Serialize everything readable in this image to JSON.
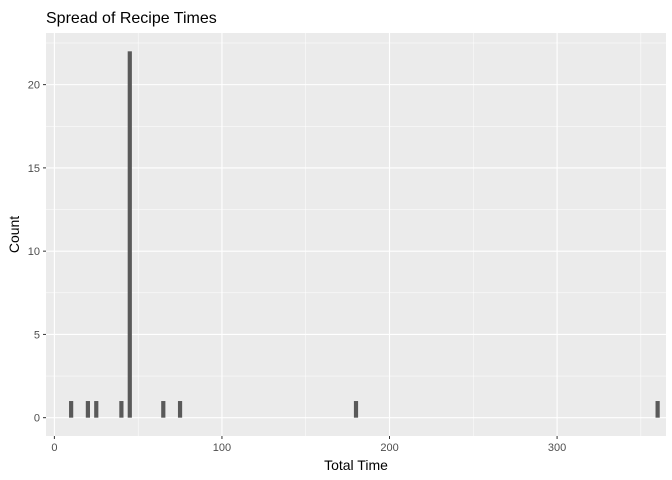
{
  "chart_data": {
    "type": "bar",
    "title": "Spread of Recipe Times",
    "xlabel": "Total Time",
    "ylabel": "Count",
    "xlim": [
      -5,
      365
    ],
    "ylim": [
      -1.1,
      23.1
    ],
    "x_ticks": [
      0,
      100,
      200,
      300
    ],
    "y_ticks": [
      0,
      5,
      10,
      15,
      20
    ],
    "grid": true,
    "legend": "none",
    "bar_width": 2.5,
    "points": [
      {
        "x": 10,
        "count": 1
      },
      {
        "x": 20,
        "count": 1
      },
      {
        "x": 25,
        "count": 1
      },
      {
        "x": 40,
        "count": 1
      },
      {
        "x": 45,
        "count": 22
      },
      {
        "x": 65,
        "count": 1
      },
      {
        "x": 75,
        "count": 1
      },
      {
        "x": 180,
        "count": 1
      },
      {
        "x": 360,
        "count": 1
      }
    ],
    "colors": {
      "panel_background": "#ebebeb",
      "grid_major": "#ffffff",
      "bar_fill": "#595959",
      "tick_text": "#4d4d4d"
    }
  }
}
